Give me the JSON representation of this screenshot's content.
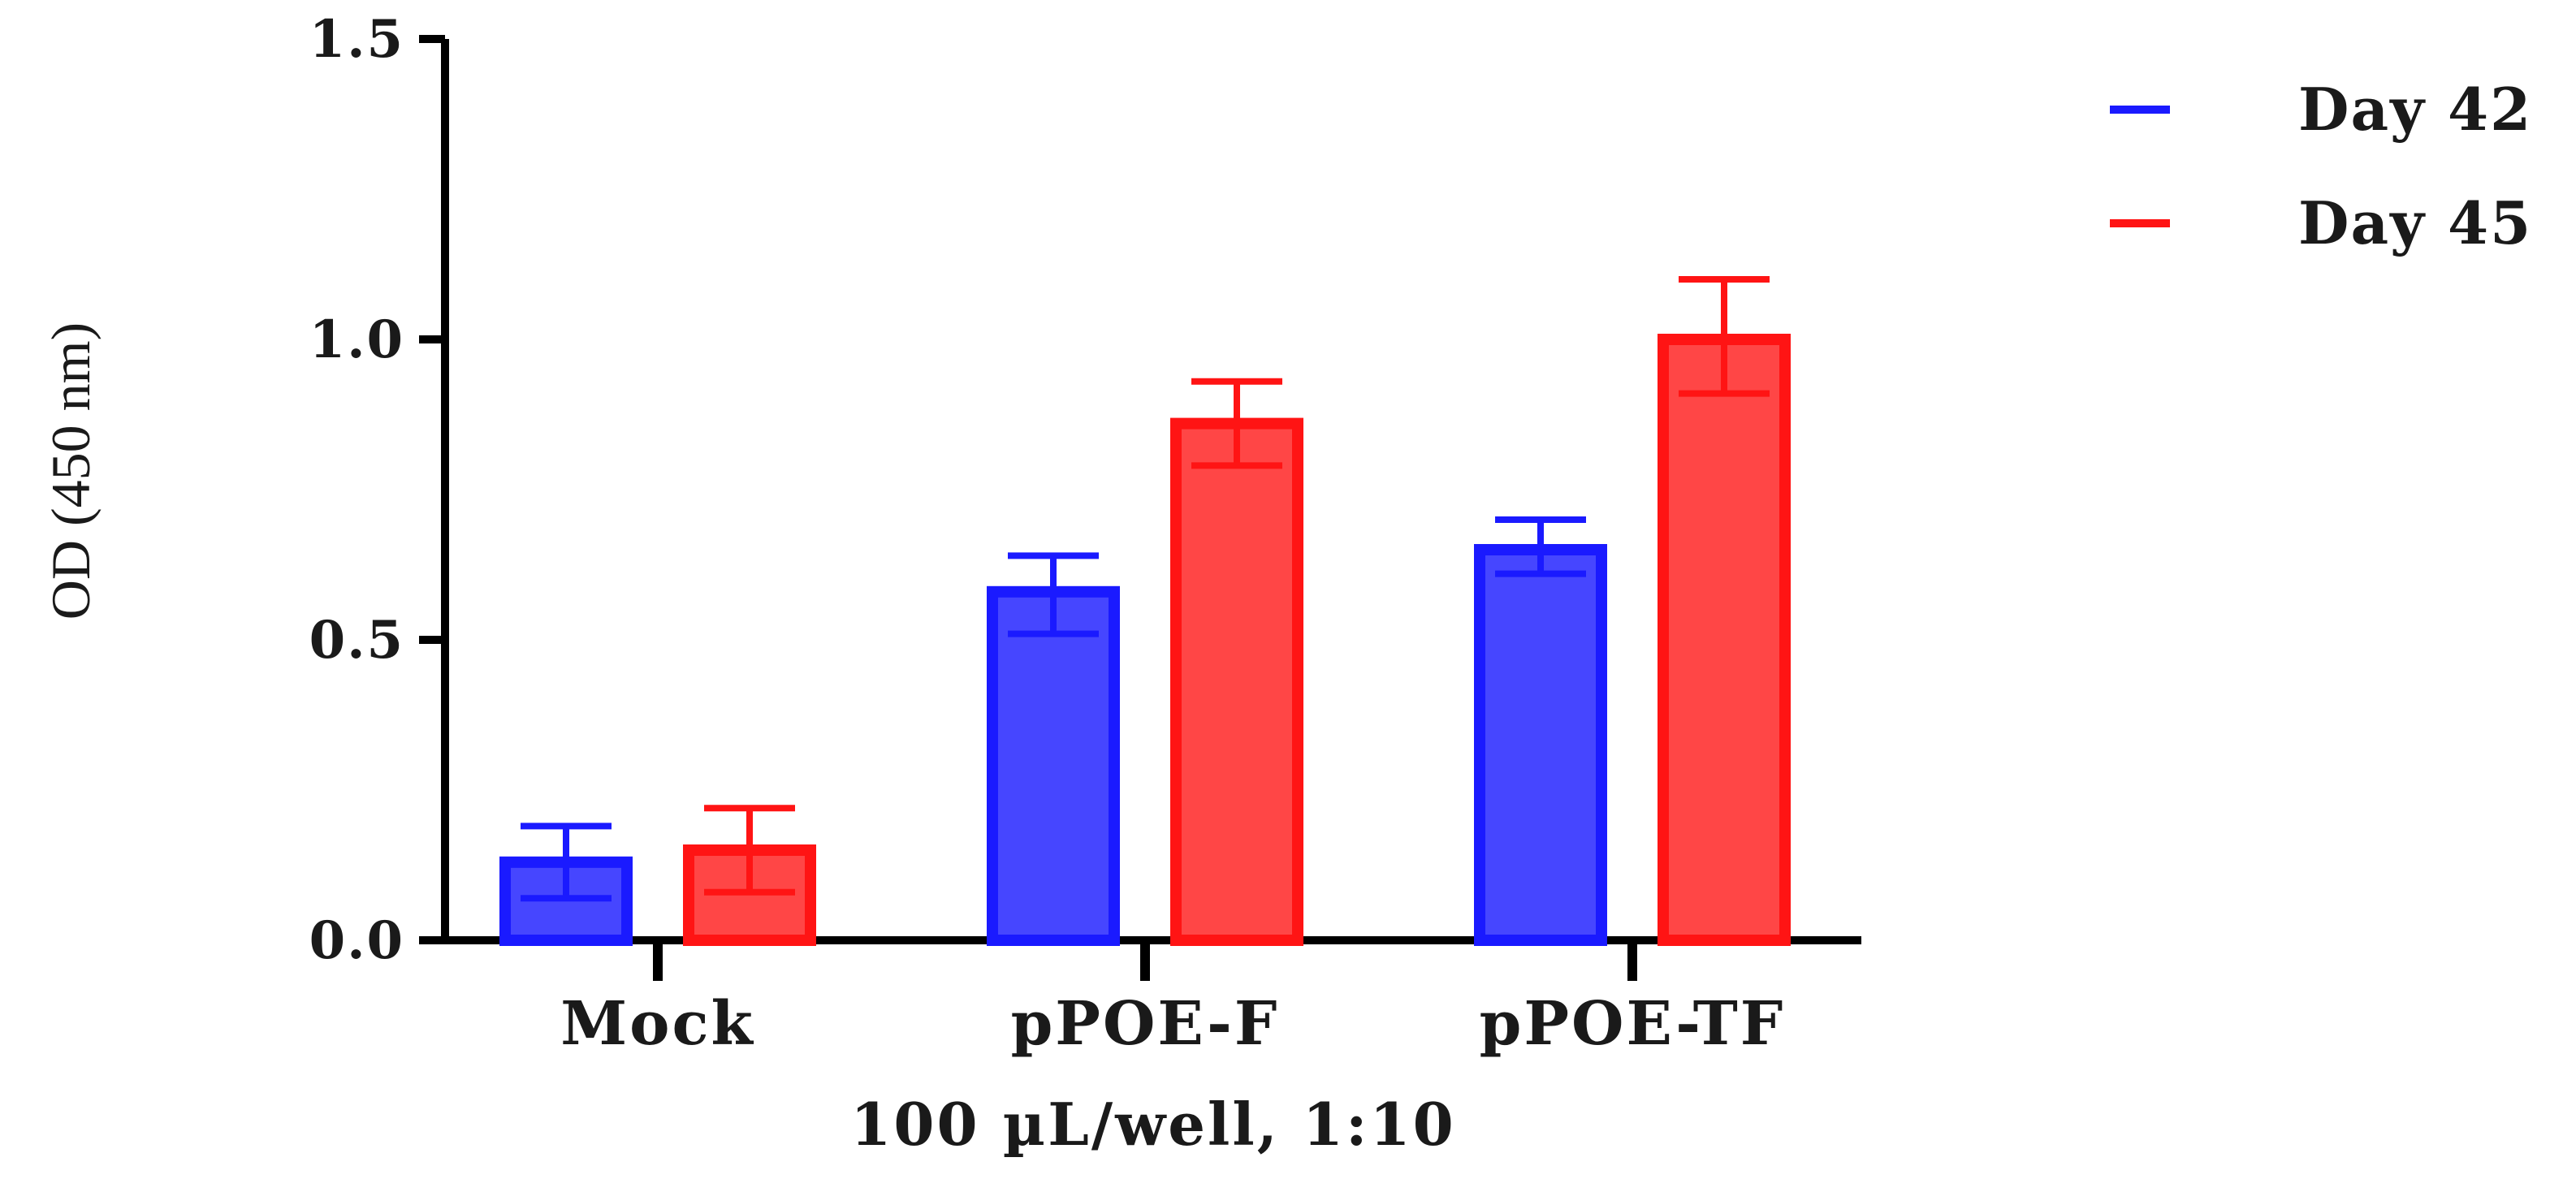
{
  "chart_data": {
    "type": "bar",
    "categories": [
      "Mock",
      "pPOE-F",
      "pPOE-TF"
    ],
    "series": [
      {
        "name": "Day 42",
        "color": "#1a1aff",
        "fill": "#4646ff",
        "values": [
          0.13,
          0.58,
          0.65
        ],
        "error_upper": [
          0.19,
          0.64,
          0.7
        ],
        "error_lower": [
          0.07,
          0.51,
          0.61
        ]
      },
      {
        "name": "Day 45",
        "color": "#ff1414",
        "fill": "#ff4646",
        "values": [
          0.15,
          0.86,
          1.0
        ],
        "error_upper": [
          0.22,
          0.93,
          1.1
        ],
        "error_lower": [
          0.08,
          0.79,
          0.91
        ]
      }
    ],
    "title": "",
    "xlabel": "100 µL/well, 1:10",
    "ylabel": "OD (450 nm)",
    "ylim": [
      0,
      1.5
    ],
    "yticks": [
      "0.0",
      "0.5",
      "1.0",
      "1.5"
    ],
    "grid": false,
    "legend_position": "top-right"
  }
}
